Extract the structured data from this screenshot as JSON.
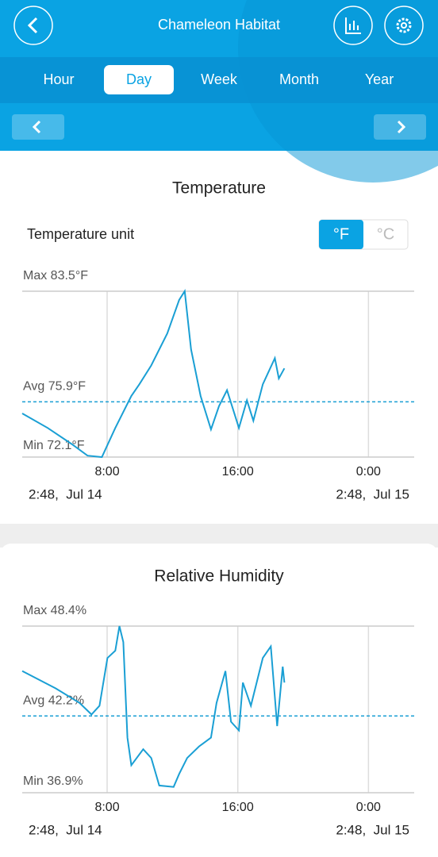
{
  "header": {
    "title": "Chameleon Habitat"
  },
  "tabs": [
    "Hour",
    "Day",
    "Week",
    "Month",
    "Year"
  ],
  "unit_setting": {
    "label": "Temperature unit",
    "options": [
      "°F",
      "°C"
    ]
  },
  "chart_data": [
    {
      "type": "line",
      "title": "Temperature",
      "color": "#1a9fd4",
      "x": [
        2.8,
        4.36,
        5.82,
        6.8,
        7.68,
        8.5,
        9.48,
        9.97,
        10.7,
        11.68,
        12.41,
        12.75,
        13.14,
        13.72,
        14.36,
        14.85,
        15.34,
        16.07,
        16.56,
        16.95,
        17.53,
        18.27,
        18.51,
        18.85
      ],
      "values": [
        75.1,
        74.1,
        73.0,
        72.2,
        72.1,
        74.1,
        76.3,
        77.1,
        78.4,
        80.6,
        82.9,
        83.5,
        79.5,
        76.3,
        74.0,
        75.6,
        76.7,
        74.1,
        76.0,
        74.6,
        77.1,
        78.9,
        77.5,
        78.2
      ],
      "xlim": [
        2.8,
        26.8
      ],
      "xticks": [
        {
          "value": 8,
          "label": "8:00"
        },
        {
          "value": 16,
          "label": "16:00"
        },
        {
          "value": 24,
          "label": "0:00"
        }
      ],
      "ylim": [
        72.1,
        83.5
      ],
      "yticks": [
        {
          "value": 83.5,
          "label": "Max 83.5°F"
        },
        {
          "value": 72.1,
          "label": "Min 72.1°F"
        }
      ],
      "average": {
        "value": 75.9,
        "label": "Avg 75.9°F"
      },
      "range_labels": [
        "2:48,  Jul 14",
        "2:48,  Jul 15"
      ]
    },
    {
      "type": "line",
      "title": "Relative Humidity",
      "color": "#1a9fd4",
      "x": [
        2.8,
        4.85,
        6.31,
        7.04,
        7.53,
        8.02,
        8.5,
        8.75,
        8.99,
        9.24,
        9.48,
        10.21,
        10.7,
        11.19,
        12.07,
        12.41,
        12.9,
        13.63,
        14.36,
        14.7,
        15.24,
        15.58,
        16.07,
        16.31,
        16.8,
        17.53,
        18.02,
        18.41,
        18.75,
        18.85
      ],
      "values": [
        45.3,
        44.1,
        43.1,
        42.3,
        42.9,
        46.2,
        46.7,
        48.4,
        47.3,
        40.7,
        38.8,
        39.9,
        39.3,
        37.4,
        37.3,
        38.2,
        39.3,
        40.1,
        40.7,
        43.1,
        45.3,
        41.8,
        41.2,
        44.5,
        42.9,
        46.2,
        47.0,
        41.5,
        45.6,
        44.5
      ],
      "xlim": [
        2.8,
        26.8
      ],
      "xticks": [
        {
          "value": 8,
          "label": "8:00"
        },
        {
          "value": 16,
          "label": "16:00"
        },
        {
          "value": 24,
          "label": "0:00"
        }
      ],
      "ylim": [
        36.9,
        48.4
      ],
      "yticks": [
        {
          "value": 48.4,
          "label": "Max 48.4%"
        },
        {
          "value": 36.9,
          "label": "Min 36.9%"
        }
      ],
      "average": {
        "value": 42.2,
        "label": "Avg 42.2%"
      },
      "range_labels": [
        "2:48,  Jul 14",
        "2:48,  Jul 15"
      ]
    }
  ]
}
